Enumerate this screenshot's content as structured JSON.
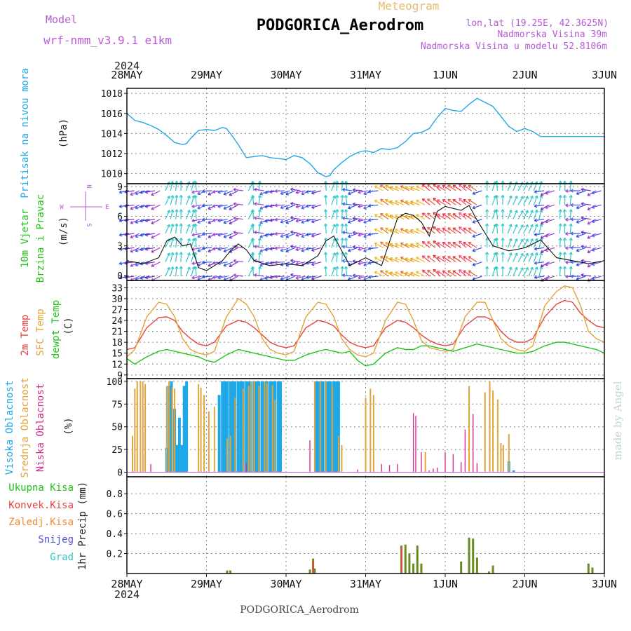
{
  "header": {
    "model_label": "Model",
    "model_name": "wrf-nmm_v3.9.1 e1km",
    "product": "Meteogram",
    "station": "PODGORICA_Aerodrom",
    "lonlat": "lon,lat (19.25E, 42.3625N)",
    "altitude": "Nadmorska Visina 39m",
    "model_altitude": "Nadmorska Visina u modelu 52.8106m",
    "year": "2024"
  },
  "footer": {
    "station": "PODGORICA_Aerodrom",
    "credit": "made by Angel"
  },
  "compass": {
    "north": "N",
    "west": "W",
    "east": "E",
    "south": "S"
  },
  "colors": {
    "pressure": "#1ea8e8",
    "wind_label": "#22c31a",
    "purple": "#b85ad6",
    "temp_2m": "#e8423c",
    "temp_sfc": "#e0a43a",
    "dewpoint": "#22c31a",
    "cloud_high": "#1ea8e8",
    "cloud_mid": "#e0a43a",
    "cloud_low": "#d62e8c",
    "precip_total": "#22c31a",
    "precip_conv": "#e8423c",
    "precip_frz": "#f08a2c",
    "precip_snow": "#5050e0",
    "precip_graupel": "#30c8c8"
  },
  "chart_data": [
    {
      "type": "line",
      "panel": "pressure",
      "ylabel": "(hPa)",
      "side_labels": [
        "Pritisak na nivou mora"
      ],
      "x_ticks": [
        "28MAY",
        "29MAY",
        "30MAY",
        "31MAY",
        "1JUN",
        "2JUN",
        "3JUN"
      ],
      "ylim": [
        1009,
        1018.5
      ],
      "y_ticks": [
        1010,
        1012,
        1014,
        1016,
        1018
      ],
      "grid": true,
      "series": [
        {
          "x": [
            0,
            0.1,
            0.2,
            0.3,
            0.4,
            0.5,
            0.6,
            0.7,
            0.75,
            0.8,
            0.9,
            1.0,
            1.1,
            1.2,
            1.25,
            1.3,
            1.4,
            1.5,
            1.6,
            1.7,
            1.8,
            1.9,
            2.0,
            2.1,
            2.2,
            2.3,
            2.4,
            2.5,
            2.55,
            2.6,
            2.7,
            2.8,
            2.9,
            3.0,
            3.1,
            3.2,
            3.3,
            3.4,
            3.5,
            3.6,
            3.7,
            3.8,
            3.9,
            4.0,
            4.1,
            4.2,
            4.3,
            4.4,
            4.5,
            4.6,
            4.7,
            4.8,
            4.9,
            5.0,
            5.1,
            5.2,
            5.3,
            5.4,
            5.5,
            5.6,
            5.7,
            5.8,
            5.9,
            6.0
          ],
          "values": [
            1016.0,
            1015.3,
            1015.1,
            1014.8,
            1014.4,
            1013.8,
            1013.1,
            1012.9,
            1013.0,
            1013.5,
            1014.3,
            1014.4,
            1014.3,
            1014.6,
            1014.5,
            1014.0,
            1012.9,
            1011.6,
            1011.7,
            1011.8,
            1011.6,
            1011.5,
            1011.4,
            1011.8,
            1011.6,
            1011.0,
            1010.1,
            1009.7,
            1009.8,
            1010.4,
            1011.1,
            1011.7,
            1012.1,
            1012.3,
            1012.1,
            1012.5,
            1012.4,
            1012.6,
            1013.2,
            1014.0,
            1014.1,
            1014.5,
            1015.6,
            1016.5,
            1016.3,
            1016.2,
            1016.9,
            1017.5,
            1017.1,
            1016.7,
            1015.7,
            1014.7,
            1014.2,
            1014.5,
            1014.2,
            1013.7,
            1013.7,
            1013.7,
            1013.7,
            1013.7,
            1013.7,
            1013.7,
            1013.7,
            1013.7
          ]
        }
      ]
    },
    {
      "type": "line",
      "panel": "wind",
      "ylabel": "(m/s)",
      "side_labels": [
        "10m Vjetar",
        "Brzina i Pravac"
      ],
      "ylim": [
        -0.5,
        9.3
      ],
      "y_ticks": [
        0,
        3,
        6,
        9
      ],
      "grid": true,
      "series": [
        {
          "name": "speed",
          "x": [
            0,
            0.2,
            0.4,
            0.5,
            0.6,
            0.7,
            0.8,
            0.9,
            1.0,
            1.2,
            1.3,
            1.4,
            1.5,
            1.6,
            1.8,
            2.0,
            2.2,
            2.4,
            2.5,
            2.6,
            2.8,
            3.0,
            3.2,
            3.4,
            3.5,
            3.6,
            3.7,
            3.8,
            3.9,
            4.0,
            4.2,
            4.3,
            4.4,
            4.6,
            4.8,
            5.0,
            5.2,
            5.4,
            5.6,
            5.8,
            6.0
          ],
          "values": [
            1.5,
            1.2,
            1.8,
            3.5,
            3.9,
            3.0,
            3.2,
            0.8,
            0.5,
            1.5,
            2.5,
            3.2,
            2.6,
            1.5,
            1.0,
            1.2,
            1.0,
            2.0,
            3.5,
            4.0,
            1.0,
            1.8,
            1.0,
            5.8,
            6.3,
            6.1,
            5.4,
            4.0,
            6.5,
            7.0,
            6.6,
            7.1,
            5.6,
            3.0,
            2.5,
            2.8,
            3.6,
            1.8,
            1.5,
            1.2,
            1.5
          ]
        }
      ]
    },
    {
      "type": "line",
      "panel": "temperature",
      "ylabel": "(C)",
      "side_labels": [
        "2m Temp",
        "SFC Temp",
        "dewpt Temp"
      ],
      "ylim": [
        8,
        35
      ],
      "y_ticks": [
        9,
        12,
        15,
        18,
        21,
        24,
        27,
        30,
        33
      ],
      "grid": true,
      "series": [
        {
          "name": "2m Temp",
          "x": [
            0,
            0.1,
            0.25,
            0.4,
            0.5,
            0.6,
            0.7,
            0.8,
            0.9,
            1.0,
            1.1,
            1.25,
            1.4,
            1.5,
            1.6,
            1.7,
            1.8,
            1.9,
            2.0,
            2.1,
            2.25,
            2.4,
            2.5,
            2.6,
            2.7,
            2.8,
            2.9,
            3.0,
            3.1,
            3.25,
            3.4,
            3.5,
            3.6,
            3.7,
            3.8,
            3.9,
            4.0,
            4.1,
            4.25,
            4.4,
            4.5,
            4.6,
            4.7,
            4.8,
            4.9,
            5.0,
            5.1,
            5.25,
            5.4,
            5.5,
            5.6,
            5.7,
            5.8,
            5.9,
            6.0
          ],
          "values": [
            16,
            16.5,
            22,
            24.8,
            25,
            24,
            21,
            19,
            17.5,
            17,
            18,
            22.5,
            24,
            23.5,
            22,
            20,
            18,
            17,
            16.5,
            17,
            22,
            24,
            23.5,
            22.5,
            20,
            18,
            17,
            16.5,
            17,
            22,
            24,
            23.5,
            22,
            20,
            18.5,
            17.5,
            17,
            17.5,
            22.5,
            25,
            25,
            24,
            21,
            19,
            18,
            18,
            19,
            25,
            28.5,
            29.5,
            29,
            26,
            24,
            22.5,
            22
          ]
        },
        {
          "name": "SFC Temp",
          "x": [
            0,
            0.1,
            0.25,
            0.4,
            0.5,
            0.6,
            0.7,
            0.8,
            0.9,
            1.0,
            1.1,
            1.25,
            1.4,
            1.5,
            1.6,
            1.7,
            1.8,
            1.9,
            2.0,
            2.1,
            2.25,
            2.4,
            2.5,
            2.6,
            2.7,
            2.8,
            2.9,
            3.0,
            3.1,
            3.25,
            3.4,
            3.5,
            3.6,
            3.7,
            3.8,
            3.9,
            4.0,
            4.1,
            4.25,
            4.4,
            4.5,
            4.6,
            4.7,
            4.8,
            4.9,
            5.0,
            5.1,
            5.25,
            5.4,
            5.5,
            5.6,
            5.7,
            5.8,
            5.9,
            6.0
          ],
          "values": [
            14,
            16,
            25,
            29,
            28.5,
            25,
            19,
            16,
            15,
            14.5,
            15.5,
            25,
            30,
            28.5,
            25,
            19,
            16,
            15,
            14.5,
            15.5,
            25,
            29,
            28.5,
            25,
            19,
            16,
            14.5,
            14,
            15,
            24,
            29,
            28.5,
            24,
            18.5,
            16.5,
            16,
            15.5,
            16,
            25,
            29,
            29,
            24,
            19,
            17,
            16,
            15.5,
            17,
            28,
            32,
            33.5,
            33,
            28,
            21,
            19,
            18
          ]
        },
        {
          "name": "dewpt Temp",
          "x": [
            0,
            0.1,
            0.25,
            0.4,
            0.5,
            0.6,
            0.7,
            0.8,
            0.9,
            1.0,
            1.1,
            1.25,
            1.4,
            1.5,
            1.6,
            1.7,
            1.8,
            1.9,
            2.0,
            2.1,
            2.25,
            2.4,
            2.5,
            2.6,
            2.7,
            2.8,
            2.9,
            3.0,
            3.1,
            3.25,
            3.4,
            3.5,
            3.6,
            3.7,
            3.8,
            3.9,
            4.0,
            4.1,
            4.25,
            4.4,
            4.5,
            4.6,
            4.7,
            4.8,
            4.9,
            5.0,
            5.1,
            5.25,
            5.4,
            5.5,
            5.6,
            5.7,
            5.8,
            5.9,
            6.0
          ],
          "values": [
            13.5,
            12,
            14,
            15.5,
            16,
            15.5,
            15,
            14.5,
            14,
            13,
            12.5,
            14.5,
            16,
            15.5,
            15,
            14.5,
            14,
            13.5,
            13,
            13,
            14.5,
            15.5,
            16,
            15.5,
            15,
            15.5,
            13,
            11.5,
            12,
            15,
            16.5,
            16,
            16,
            17,
            17,
            16.5,
            16,
            15.5,
            16.5,
            17.5,
            17,
            16.5,
            16,
            15.5,
            15,
            15,
            15.5,
            17,
            18,
            18,
            17.5,
            17,
            16.5,
            16,
            15
          ]
        }
      ]
    },
    {
      "type": "bar",
      "panel": "clouds",
      "ylabel": "(%)",
      "side_labels": [
        "Visoka Oblacnost",
        "Srednja Oblacnost",
        "Niska Oblacnost"
      ],
      "ylim": [
        -5,
        103
      ],
      "y_ticks": [
        0,
        25,
        50,
        75,
        100
      ],
      "grid": true,
      "series": [
        {
          "name": "Visoka Oblacnost",
          "x": [
            0.5,
            0.53,
            0.56,
            0.6,
            0.63,
            0.66,
            0.69,
            0.72,
            0.75,
            1.16,
            1.2,
            1.23,
            1.26,
            1.3,
            1.33,
            1.36,
            1.4,
            1.43,
            1.46,
            1.5,
            1.53,
            1.56,
            1.6,
            1.63,
            1.66,
            1.7,
            1.73,
            1.76,
            1.8,
            1.83,
            1.86,
            1.9,
            1.93,
            2.37,
            2.4,
            2.43,
            2.46,
            2.5,
            2.53,
            2.56,
            2.6,
            2.63,
            2.66,
            4.8,
            4.86
          ],
          "values": [
            27,
            95,
            100,
            70,
            30,
            60,
            30,
            95,
            100,
            85,
            100,
            100,
            100,
            100,
            100,
            100,
            100,
            100,
            100,
            100,
            100,
            100,
            100,
            100,
            100,
            100,
            100,
            100,
            100,
            100,
            100,
            100,
            100,
            100,
            100,
            100,
            100,
            100,
            100,
            100,
            100,
            100,
            100,
            12,
            2
          ]
        },
        {
          "name": "Srednja Oblacnost",
          "x": [
            0.07,
            0.1,
            0.13,
            0.17,
            0.2,
            0.23,
            0.5,
            0.53,
            0.57,
            0.6,
            0.9,
            0.93,
            0.97,
            1.03,
            1.1,
            1.26,
            1.3,
            1.36,
            1.46,
            1.53,
            1.56,
            1.6,
            1.66,
            1.73,
            1.76,
            1.83,
            1.86,
            2.36,
            2.43,
            2.5,
            2.58,
            2.66,
            2.7,
            3.0,
            3.06,
            3.1,
            3.75,
            4.3,
            4.5,
            4.56,
            4.6,
            4.66,
            4.7,
            4.73,
            4.8
          ],
          "values": [
            40,
            92,
            100,
            100,
            100,
            97,
            95,
            100,
            93,
            92,
            97,
            93,
            85,
            67,
            72,
            37,
            40,
            82,
            92,
            95,
            100,
            100,
            95,
            100,
            98,
            96,
            80,
            100,
            100,
            100,
            96,
            40,
            30,
            82,
            92,
            85,
            22,
            95,
            88,
            100,
            90,
            80,
            32,
            30,
            42
          ]
        },
        {
          "name": "Niska Oblacnost",
          "x": [
            0.3,
            1.5,
            2.3,
            2.9,
            3.2,
            3.3,
            3.4,
            3.6,
            3.63,
            3.7,
            3.8,
            3.85,
            3.9,
            4.0,
            4.1,
            4.2,
            4.25,
            4.35,
            4.4
          ],
          "values": [
            9,
            10,
            35,
            3,
            9,
            8,
            9,
            65,
            62,
            22,
            2,
            4,
            5,
            22,
            20,
            11,
            47,
            64,
            10
          ]
        }
      ]
    },
    {
      "type": "bar",
      "panel": "precipitation",
      "ylabel": "1hr Precip (mm)",
      "side_labels": [
        "Ukupna Kisa",
        "Konvek.Kisa",
        "Zaledj.Kisa",
        "Snijeg",
        "Grad"
      ],
      "ylim": [
        0,
        0.97
      ],
      "y_ticks": [
        0.2,
        0.4,
        0.6,
        0.8
      ],
      "grid": true,
      "series": [
        {
          "name": "Ukupna Kisa",
          "x": [
            1.26,
            1.3,
            2.3,
            2.34,
            2.36,
            3.45,
            3.5,
            3.55,
            3.6,
            3.65,
            3.7,
            4.2,
            4.3,
            4.35,
            4.4,
            4.55,
            4.6,
            5.8,
            5.85
          ],
          "values": [
            0.03,
            0.03,
            0.04,
            0.15,
            0.05,
            0.28,
            0.29,
            0.2,
            0.1,
            0.28,
            0.1,
            0.12,
            0.36,
            0.35,
            0.16,
            0.02,
            0.08,
            0.1,
            0.06
          ]
        },
        {
          "name": "Konvek.Kisa",
          "x": [
            2.34,
            3.45
          ],
          "values": [
            0.12,
            0.26
          ]
        }
      ]
    }
  ]
}
